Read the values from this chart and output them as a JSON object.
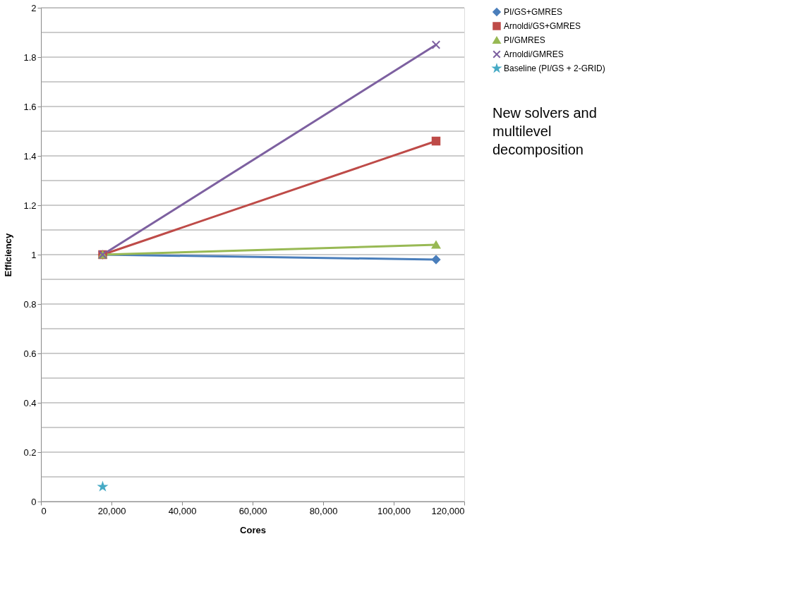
{
  "chart_data": {
    "type": "line",
    "xlabel": "Cores",
    "ylabel": "Efficiency",
    "xlim": [
      0,
      120000
    ],
    "xticks": [
      0,
      {
        "value": 20000,
        "label": "20,000"
      },
      {
        "value": 40000,
        "label": "40,000"
      },
      {
        "value": 60000,
        "label": "60,000"
      },
      {
        "value": 80000,
        "label": "80,000"
      },
      {
        "value": 100000,
        "label": "100,000"
      },
      {
        "value": 120000,
        "label": "120,000"
      }
    ],
    "ylim": [
      0,
      2
    ],
    "yticks": [
      0,
      {
        "value": 0.1,
        "label": null
      },
      0.2,
      {
        "value": 0.3,
        "label": null
      },
      0.4,
      {
        "value": 0.5,
        "label": null
      },
      0.6,
      {
        "value": 0.7,
        "label": null
      },
      0.8,
      {
        "value": 0.9,
        "label": null
      },
      1,
      {
        "value": 1.1,
        "label": null
      },
      1.2,
      {
        "value": 1.3,
        "label": null
      },
      1.4,
      {
        "value": 1.5,
        "label": null
      },
      1.6,
      {
        "value": 1.7,
        "label": null
      },
      1.8,
      {
        "value": 1.9,
        "label": null
      },
      2
    ],
    "grid": "y",
    "legend": "right",
    "x": [
      17500,
      112000
    ],
    "annotations": [
      "New solvers and multilevel decomposition"
    ],
    "series": [
      {
        "name": "PI/GS+GMRES",
        "color": "#4a7ebb",
        "marker": "diamond",
        "values": [
          1.0,
          0.98
        ]
      },
      {
        "name": "Arnoldi/GS+GMRES",
        "color": "#be4b48",
        "marker": "square",
        "values": [
          1.0,
          1.46
        ]
      },
      {
        "name": "PI/GMRES",
        "color": "#98b954",
        "marker": "triangle",
        "values": [
          1.0,
          1.04
        ]
      },
      {
        "name": "Arnoldi/GMRES",
        "color": "#7d60a0",
        "marker": "cross",
        "values": [
          1.0,
          1.85
        ]
      },
      {
        "name": "Baseline (PI/GS + 2-GRID)",
        "color": "#46aac5",
        "marker": "star",
        "values": [
          0.06,
          null
        ]
      }
    ]
  }
}
